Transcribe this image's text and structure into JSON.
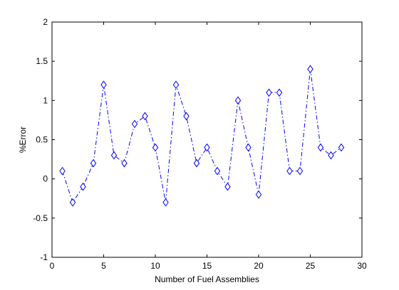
{
  "chart_data": {
    "type": "line",
    "title": "",
    "xlabel": "Number of Fuel Assemblies",
    "ylabel": "%Error",
    "xlim": [
      0,
      30
    ],
    "ylim": [
      -1,
      2
    ],
    "xticks": [
      0,
      5,
      10,
      15,
      20,
      25,
      30
    ],
    "yticks": [
      -1,
      -0.5,
      0,
      0.5,
      1,
      1.5,
      2
    ],
    "xtick_labels": [
      "0",
      "5",
      "10",
      "15",
      "20",
      "25",
      "30"
    ],
    "ytick_labels": [
      "-1",
      "-0.5",
      "0",
      "0.5",
      "1",
      "1.5",
      "2"
    ],
    "grid": false,
    "series": [
      {
        "color": "#0000ff",
        "line_style": "dash-dot",
        "marker": "diamond",
        "x": [
          1,
          2,
          3,
          4,
          5,
          6,
          7,
          8,
          9,
          10,
          11,
          12,
          13,
          14,
          15,
          16,
          17,
          18,
          19,
          20,
          21,
          22,
          23,
          24,
          25,
          26,
          27,
          28
        ],
        "y": [
          0.1,
          -0.3,
          -0.1,
          0.2,
          1.2,
          0.3,
          0.2,
          0.7,
          0.8,
          0.4,
          -0.3,
          1.2,
          0.8,
          0.2,
          0.4,
          0.1,
          -0.1,
          1.0,
          0.4,
          -0.2,
          1.1,
          1.1,
          0.1,
          0.1,
          1.4,
          0.4,
          0.3,
          0.4
        ]
      }
    ]
  }
}
